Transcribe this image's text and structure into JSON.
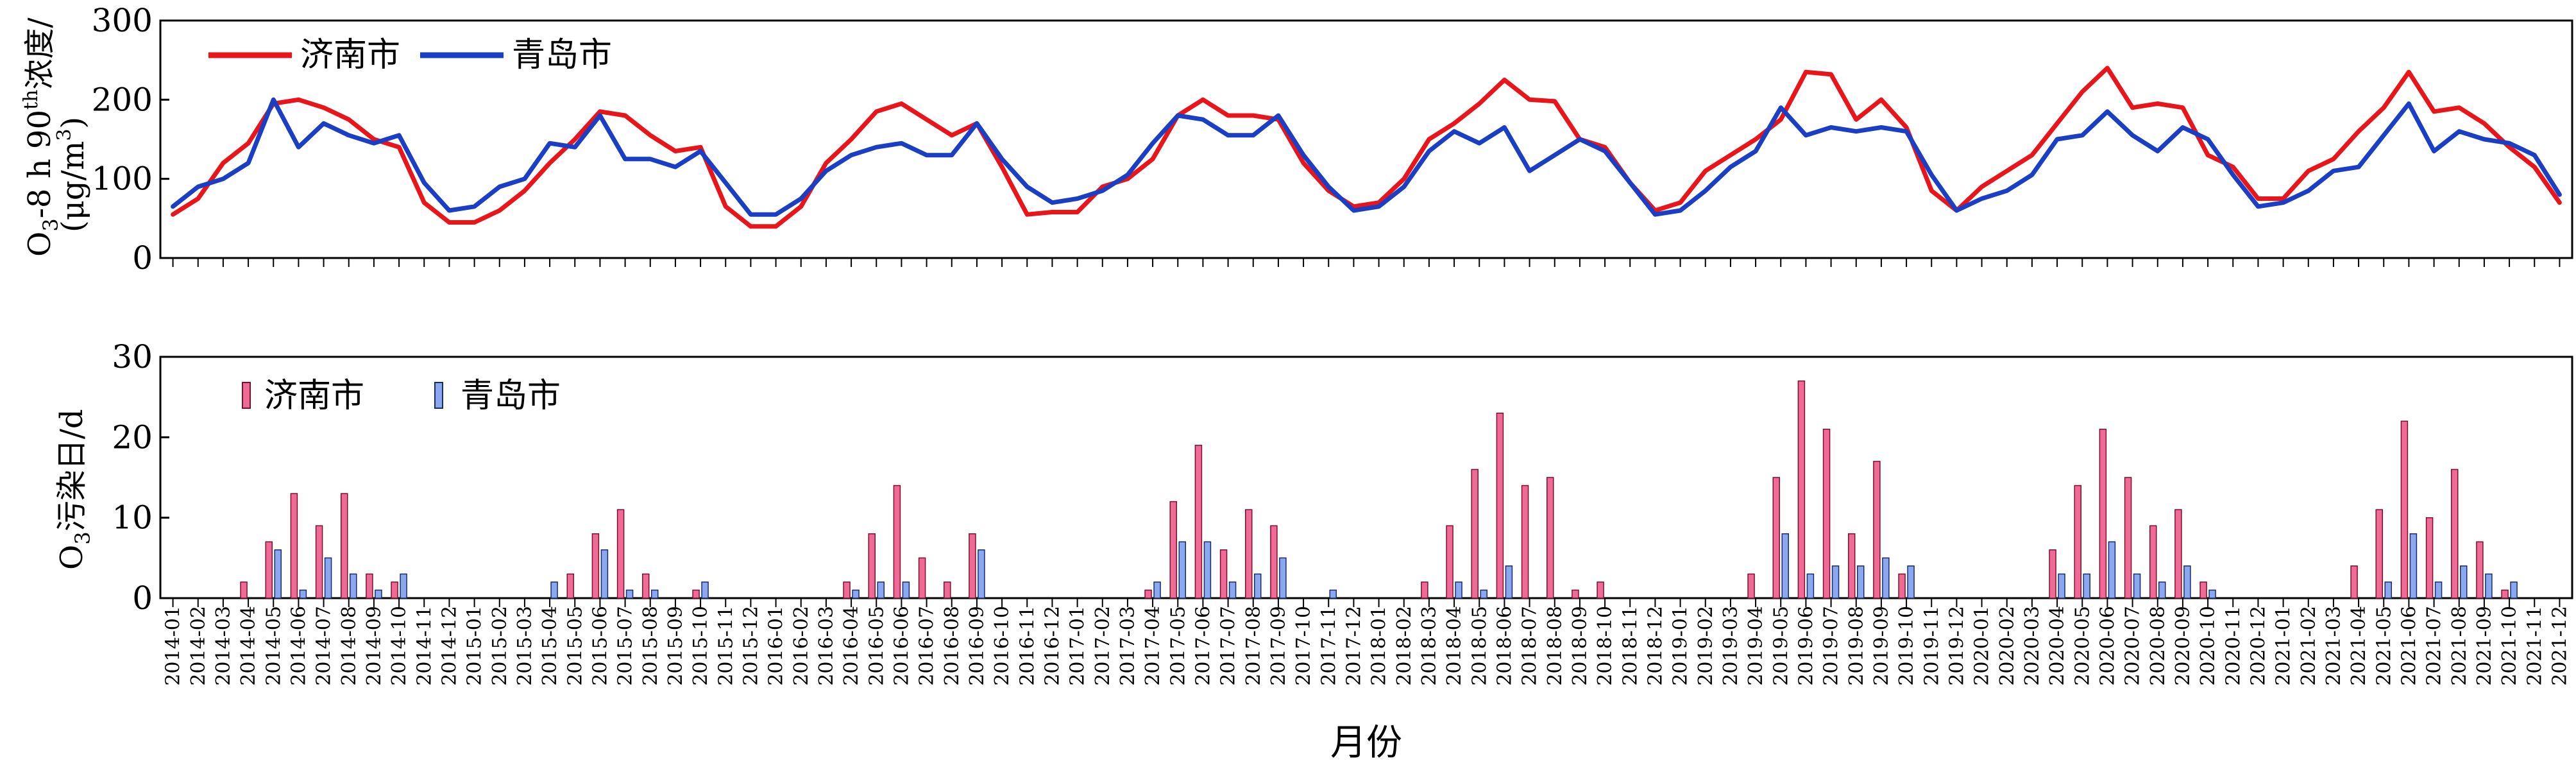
{
  "chart_data": [
    {
      "type": "line",
      "ylabel_main": "O",
      "ylabel_sub": "3",
      "ylabel_rest": "-8 h 90",
      "ylabel_sup": "th",
      "ylabel_tail": "浓度/",
      "ylabel_unit_a": "(μg/m",
      "ylabel_unit_sup": "3",
      "ylabel_unit_b": ")",
      "ylim": [
        0,
        300
      ],
      "yticks": [
        "0",
        "100",
        "200",
        "300"
      ],
      "grid": false,
      "legend_position": "top-left",
      "series": [
        {
          "name": "济南市",
          "color": "#e8161b",
          "values": [
            55,
            75,
            120,
            145,
            195,
            200,
            190,
            175,
            150,
            140,
            70,
            45,
            45,
            60,
            85,
            120,
            150,
            185,
            180,
            155,
            135,
            140,
            65,
            40,
            40,
            65,
            120,
            150,
            185,
            195,
            175,
            155,
            170,
            115,
            55,
            58,
            58,
            90,
            100,
            125,
            180,
            200,
            180,
            180,
            175,
            120,
            85,
            65,
            70,
            100,
            150,
            170,
            195,
            225,
            200,
            198,
            150,
            140,
            95,
            60,
            70,
            110,
            130,
            150,
            175,
            235,
            232,
            175,
            200,
            165,
            85,
            60,
            90,
            110,
            130,
            170,
            210,
            240,
            190,
            195,
            190,
            130,
            115,
            75,
            75,
            110,
            125,
            160,
            190,
            235,
            185,
            190,
            170,
            140,
            115,
            70
          ]
        },
        {
          "name": "青岛市",
          "color": "#1a3fc4",
          "values": [
            65,
            90,
            100,
            120,
            200,
            140,
            170,
            155,
            145,
            155,
            95,
            60,
            65,
            90,
            100,
            145,
            140,
            180,
            125,
            125,
            115,
            135,
            95,
            55,
            55,
            75,
            110,
            130,
            140,
            145,
            130,
            130,
            170,
            125,
            90,
            70,
            75,
            85,
            105,
            145,
            180,
            175,
            155,
            155,
            180,
            130,
            90,
            60,
            65,
            90,
            135,
            160,
            145,
            165,
            110,
            130,
            150,
            135,
            95,
            55,
            60,
            85,
            115,
            135,
            190,
            155,
            165,
            160,
            165,
            160,
            105,
            60,
            75,
            85,
            105,
            150,
            155,
            185,
            155,
            135,
            165,
            150,
            105,
            65,
            70,
            85,
            110,
            115,
            155,
            195,
            135,
            160,
            150,
            145,
            130,
            80
          ]
        }
      ]
    },
    {
      "type": "bar",
      "ylabel_main": "O",
      "ylabel_sub": "3",
      "ylabel_rest": "污染日/d",
      "xlabel": "月份",
      "ylim": [
        0,
        30
      ],
      "yticks": [
        "0",
        "10",
        "20",
        "30"
      ],
      "grid": false,
      "legend_position": "top-left",
      "categories": [
        "2014-01",
        "2014-02",
        "2014-03",
        "2014-04",
        "2014-05",
        "2014-06",
        "2014-07",
        "2014-08",
        "2014-09",
        "2014-10",
        "2014-11",
        "2014-12",
        "2015-01",
        "2015-02",
        "2015-03",
        "2015-04",
        "2015-05",
        "2015-06",
        "2015-07",
        "2015-08",
        "2015-09",
        "2015-10",
        "2015-11",
        "2015-12",
        "2016-01",
        "2016-02",
        "2016-03",
        "2016-04",
        "2016-05",
        "2016-06",
        "2016-07",
        "2016-08",
        "2016-09",
        "2016-10",
        "2016-11",
        "2016-12",
        "2017-01",
        "2017-02",
        "2017-03",
        "2017-04",
        "2017-05",
        "2017-06",
        "2017-07",
        "2017-08",
        "2017-09",
        "2017-10",
        "2017-11",
        "2017-12",
        "2018-01",
        "2018-02",
        "2018-03",
        "2018-04",
        "2018-05",
        "2018-06",
        "2018-07",
        "2018-08",
        "2018-09",
        "2018-10",
        "2018-11",
        "2018-12",
        "2019-01",
        "2019-02",
        "2019-03",
        "2019-04",
        "2019-05",
        "2019-06",
        "2019-07",
        "2019-08",
        "2019-09",
        "2019-10",
        "2019-11",
        "2019-12",
        "2020-01",
        "2020-02",
        "2020-03",
        "2020-04",
        "2020-05",
        "2020-06",
        "2020-07",
        "2020-08",
        "2020-09",
        "2020-10",
        "2020-11",
        "2020-12",
        "2021-01",
        "2021-02",
        "2021-03",
        "2021-04",
        "2021-05",
        "2021-06",
        "2021-07",
        "2021-08",
        "2021-09",
        "2021-10",
        "2021-11",
        "2021-12"
      ],
      "series": [
        {
          "name": "济南市",
          "color": "#f06a96",
          "values": [
            0,
            0,
            0,
            2,
            7,
            13,
            9,
            13,
            3,
            2,
            0,
            0,
            0,
            0,
            0,
            0,
            3,
            8,
            11,
            3,
            0,
            1,
            0,
            0,
            0,
            0,
            0,
            2,
            8,
            14,
            5,
            2,
            8,
            0,
            0,
            0,
            0,
            0,
            0,
            1,
            12,
            19,
            6,
            11,
            9,
            0,
            0,
            0,
            0,
            0,
            2,
            9,
            16,
            23,
            14,
            15,
            1,
            2,
            0,
            0,
            0,
            0,
            0,
            3,
            15,
            27,
            21,
            8,
            17,
            3,
            0,
            0,
            0,
            0,
            0,
            6,
            14,
            21,
            15,
            9,
            11,
            2,
            0,
            0,
            0,
            0,
            0,
            4,
            11,
            22,
            10,
            16,
            7,
            1,
            0,
            0
          ]
        },
        {
          "name": "青岛市",
          "color": "#8aa8f0",
          "values": [
            0,
            0,
            0,
            0,
            6,
            1,
            5,
            3,
            1,
            3,
            0,
            0,
            0,
            0,
            0,
            2,
            0,
            6,
            1,
            1,
            0,
            2,
            0,
            0,
            0,
            0,
            0,
            1,
            2,
            2,
            0,
            0,
            6,
            0,
            0,
            0,
            0,
            0,
            0,
            2,
            7,
            7,
            2,
            3,
            5,
            0,
            1,
            0,
            0,
            0,
            0,
            2,
            1,
            4,
            0,
            0,
            0,
            0,
            0,
            0,
            0,
            0,
            0,
            0,
            8,
            3,
            4,
            4,
            5,
            4,
            0,
            0,
            0,
            0,
            0,
            3,
            3,
            7,
            3,
            2,
            4,
            1,
            0,
            0,
            0,
            0,
            0,
            0,
            2,
            8,
            2,
            4,
            3,
            2,
            0,
            0
          ]
        }
      ]
    }
  ]
}
